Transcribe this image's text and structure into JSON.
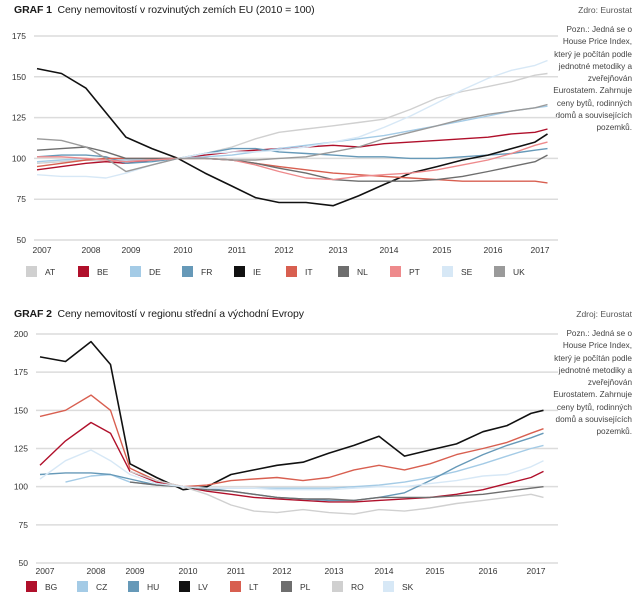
{
  "chart_data": [
    {
      "id": "graf1",
      "type": "line",
      "title_prefix": "GRAF 1",
      "title": "Ceny nemovitostí v rozvinutých zemích EU (2010 = 100)",
      "source": "Zdro:  Eurostat",
      "note": "Pozn.: Jedná se o House Price Index, který je počítán podle jednotné metodiky a zveřejňován Eurostatem. Zahrnuje ceny bytů, rodinných domů a souvisejících pozemků.",
      "xlabel": "",
      "ylabel": "",
      "ylim": [
        50,
        175
      ],
      "yticks": [
        50,
        75,
        100,
        125,
        150,
        175
      ],
      "xticks": [
        "2007",
        "2008",
        "2009",
        "2010",
        "2011",
        "2012",
        "2013",
        "2014",
        "2015",
        "2016",
        "2017"
      ],
      "grid": true,
      "legend_position": "bottom",
      "x": [
        2007.0,
        2007.5,
        2008.0,
        2008.5,
        2009.0,
        2009.5,
        2010.0,
        2010.5,
        2011.0,
        2011.5,
        2012.0,
        2012.5,
        2013.0,
        2013.5,
        2014.0,
        2014.5,
        2015.0,
        2015.5,
        2016.0,
        2016.5,
        2017.0,
        2017.25
      ],
      "series": [
        {
          "name": "AT",
          "color": "#d0d0d0",
          "values": [
            97,
            98,
            99,
            98,
            97,
            99,
            100,
            103,
            107,
            112,
            116,
            118,
            120,
            122,
            124,
            130,
            137,
            141,
            144,
            147,
            151,
            152
          ]
        },
        {
          "name": "BE",
          "color": "#b0102b",
          "values": [
            93,
            95,
            97,
            98,
            97,
            99,
            100,
            102,
            104,
            105,
            106,
            107,
            108,
            107,
            109,
            110,
            111,
            112,
            113,
            115,
            116,
            118
          ]
        },
        {
          "name": "DE",
          "color": "#a4cbe6",
          "values": [
            98,
            99,
            100,
            99,
            99,
            99,
            100,
            101,
            102,
            104,
            106,
            108,
            110,
            112,
            114,
            117,
            120,
            123,
            126,
            129,
            131,
            132
          ]
        },
        {
          "name": "FR",
          "color": "#6699b8",
          "values": [
            101,
            102,
            102,
            101,
            97,
            98,
            100,
            103,
            106,
            106,
            104,
            103,
            102,
            101,
            101,
            100,
            100,
            101,
            102,
            103,
            105,
            106
          ]
        },
        {
          "name": "IE",
          "color": "#111111",
          "values": [
            155,
            152,
            143,
            128,
            113,
            106,
            100,
            91,
            83,
            76,
            73,
            73,
            71,
            77,
            84,
            91,
            95,
            99,
            102,
            106,
            110,
            115
          ]
        },
        {
          "name": "IT",
          "color": "#d85f50",
          "values": [
            95,
            97,
            99,
            100,
            100,
            100,
            100,
            100,
            99,
            97,
            95,
            93,
            91,
            90,
            89,
            88,
            87,
            86,
            86,
            86,
            86,
            85
          ]
        },
        {
          "name": "NL",
          "color": "#6e6e6e",
          "values": [
            105,
            106,
            107,
            104,
            100,
            100,
            100,
            100,
            99,
            97,
            94,
            91,
            87,
            86,
            86,
            86,
            87,
            89,
            92,
            95,
            98,
            102
          ]
        },
        {
          "name": "PT",
          "color": "#ee8a8c",
          "values": [
            101,
            101,
            100,
            99,
            98,
            99,
            100,
            100,
            99,
            96,
            92,
            88,
            87,
            89,
            90,
            91,
            93,
            96,
            99,
            103,
            108,
            110
          ]
        },
        {
          "name": "SE",
          "color": "#d7e8f6",
          "values": [
            90,
            89,
            89,
            88,
            91,
            96,
            100,
            103,
            104,
            104,
            105,
            107,
            110,
            113,
            119,
            126,
            134,
            142,
            149,
            154,
            157,
            160
          ]
        },
        {
          "name": "UK",
          "color": "#9a9a9a",
          "values": [
            112,
            111,
            107,
            100,
            92,
            96,
            100,
            100,
            99,
            99,
            100,
            101,
            104,
            107,
            112,
            116,
            120,
            124,
            127,
            129,
            131,
            133
          ]
        }
      ]
    },
    {
      "id": "graf2",
      "type": "line",
      "title_prefix": "GRAF 2",
      "title": "Ceny nemovitostí v regionu střední a východní Evropy",
      "source": "Zdroj:  Eurostat",
      "note": "Pozn.: Jedná se o House Price Index, který je počítán podle jednotné metodiky a zveřejňován Eurostatem. Zahrnuje ceny bytů, rodinných domů a souvisejících pozemků.",
      "xlabel": "",
      "ylabel": "",
      "ylim": [
        50,
        200
      ],
      "yticks": [
        50,
        75,
        100,
        125,
        150,
        175,
        200
      ],
      "xticks": [
        "2007",
        "2008",
        "2009",
        "2010",
        "2011",
        "2012",
        "2013",
        "2014",
        "2015",
        "2016",
        "2017"
      ],
      "grid": true,
      "legend_position": "bottom",
      "x": [
        2007.0,
        2007.5,
        2008.0,
        2008.5,
        2009.0,
        2009.5,
        2010.0,
        2010.5,
        2011.0,
        2011.5,
        2012.0,
        2012.5,
        2013.0,
        2013.5,
        2014.0,
        2014.5,
        2015.0,
        2015.5,
        2016.0,
        2016.5,
        2017.0,
        2017.25
      ],
      "series": [
        {
          "name": "BG",
          "color": "#b0102b",
          "values": [
            114,
            130,
            142,
            135,
            110,
            103,
            100,
            97,
            95,
            93,
            92,
            91,
            90,
            90,
            91,
            92,
            93,
            95,
            98,
            102,
            106,
            110
          ]
        },
        {
          "name": "CZ",
          "color": "#a4cbe6",
          "values": [
            null,
            103,
            107,
            108,
            103,
            101,
            100,
            99,
            99,
            99,
            99,
            99,
            99,
            100,
            101,
            103,
            106,
            110,
            115,
            120,
            125,
            127
          ]
        },
        {
          "name": "HU",
          "color": "#6699b8",
          "values": [
            108,
            109,
            109,
            108,
            105,
            101,
            100,
            99,
            97,
            95,
            93,
            92,
            91,
            91,
            93,
            96,
            104,
            113,
            121,
            127,
            132,
            135
          ]
        },
        {
          "name": "LV",
          "color": "#111111",
          "values": [
            185,
            182,
            195,
            180,
            115,
            106,
            98,
            100,
            108,
            111,
            114,
            116,
            122,
            127,
            133,
            120,
            124,
            128,
            136,
            140,
            148,
            150
          ]
        },
        {
          "name": "LT",
          "color": "#d85f50",
          "values": [
            146,
            150,
            160,
            150,
            112,
            104,
            100,
            101,
            104,
            105,
            106,
            104,
            106,
            111,
            114,
            111,
            115,
            121,
            125,
            129,
            135,
            138
          ]
        },
        {
          "name": "PL",
          "color": "#6e6e6e",
          "values": [
            null,
            null,
            null,
            null,
            103,
            101,
            100,
            98,
            97,
            95,
            93,
            92,
            92,
            91,
            93,
            93,
            93,
            94,
            95,
            97,
            99,
            100
          ]
        },
        {
          "name": "RO",
          "color": "#d0d0d0",
          "values": [
            null,
            null,
            null,
            null,
            110,
            104,
            100,
            95,
            88,
            84,
            83,
            85,
            83,
            82,
            85,
            84,
            86,
            89,
            91,
            93,
            95,
            93
          ]
        },
        {
          "name": "SK",
          "color": "#d7e8f6",
          "values": [
            105,
            117,
            124,
            117,
            108,
            102,
            100,
            99,
            99,
            99,
            98,
            98,
            98,
            99,
            100,
            100,
            102,
            104,
            107,
            108,
            113,
            117
          ]
        }
      ]
    }
  ]
}
